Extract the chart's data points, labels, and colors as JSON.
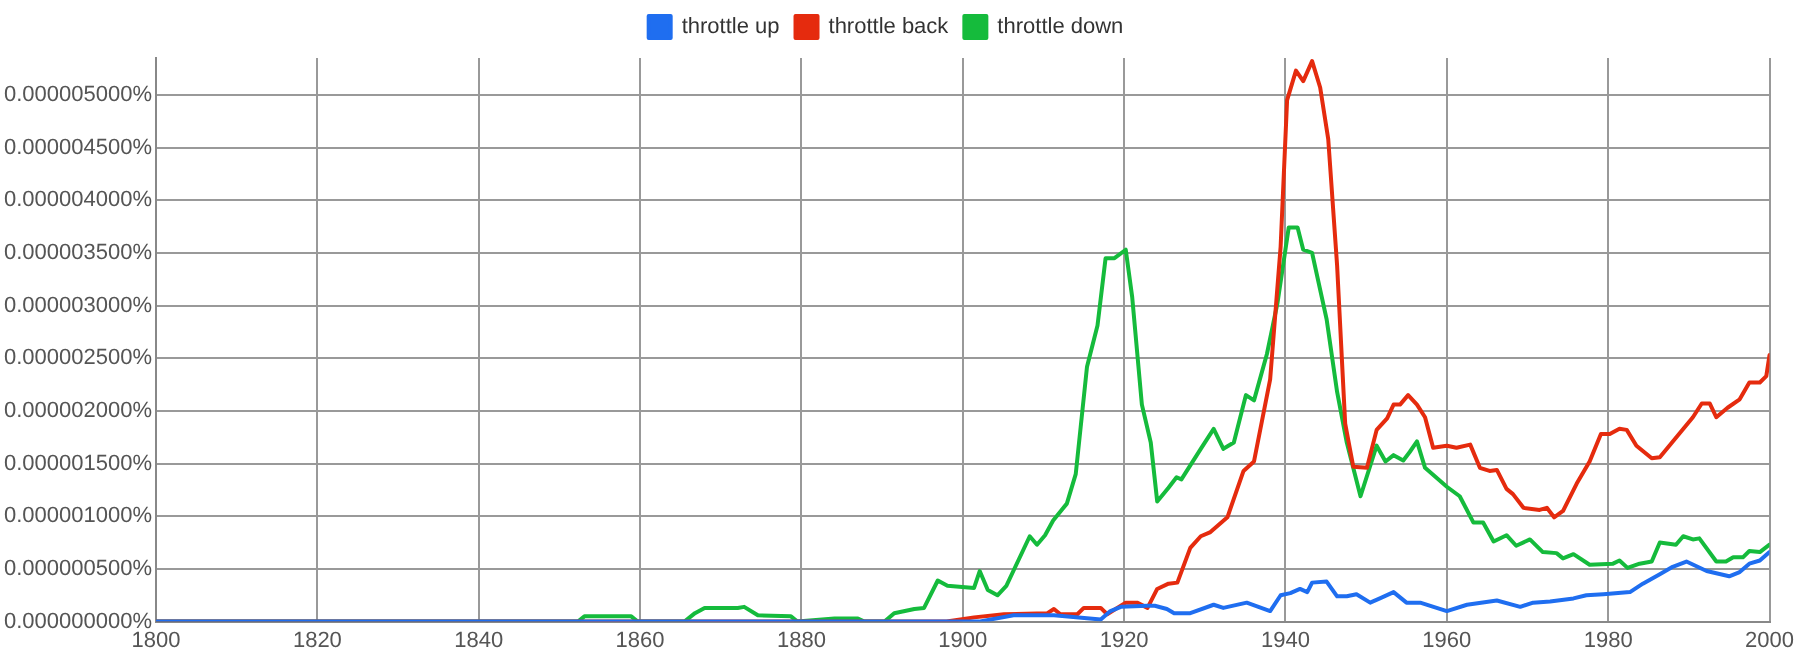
{
  "chart_data": {
    "type": "line",
    "xlim": [
      1800,
      2000
    ],
    "xticks": [
      1800,
      1820,
      1840,
      1860,
      1880,
      1900,
      1920,
      1940,
      1960,
      1980,
      2000
    ],
    "ylim": [
      0,
      5.35e-06
    ],
    "yticks": [
      {
        "value": 0,
        "label": "0.000000000%"
      },
      {
        "value": 5e-07,
        "label": "0.000000500%"
      },
      {
        "value": 1e-06,
        "label": "0.000001000%"
      },
      {
        "value": 1.5e-06,
        "label": "0.000001500%"
      },
      {
        "value": 2e-06,
        "label": "0.000002000%"
      },
      {
        "value": 2.5e-06,
        "label": "0.000002500%"
      },
      {
        "value": 3e-06,
        "label": "0.000003000%"
      },
      {
        "value": 3.5e-06,
        "label": "0.000003500%"
      },
      {
        "value": 4e-06,
        "label": "0.000004000%"
      },
      {
        "value": 4.5e-06,
        "label": "0.000004500%"
      },
      {
        "value": 5e-06,
        "label": "0.000005000%"
      }
    ],
    "grid": true,
    "legend": "top",
    "marker": "none",
    "line_style": "solid",
    "series": [
      {
        "name": "throttle up",
        "color": "#1f6ef0",
        "x": [
          1800,
          1902,
          1906.3,
          1911.3,
          1917.1,
          1918.3,
          1919.6,
          1922.9,
          1923.8,
          1925.3,
          1926.2,
          1928.2,
          1931.1,
          1932.3,
          1935.2,
          1938.1,
          1939.4,
          1940.6,
          1941.8,
          1942.7,
          1943.3,
          1945.1,
          1946.4,
          1947.6,
          1948.8,
          1950.5,
          1951.7,
          1953.4,
          1955,
          1956.7,
          1960,
          1962.5,
          1966.2,
          1969.1,
          1970.7,
          1972.8,
          1975.7,
          1977.3,
          1979.4,
          1982.7,
          1984.3,
          1986.4,
          1988,
          1989.7,
          1992.2,
          1995,
          1996.3,
          1997.5,
          1998.8,
          2000
        ],
        "values": [
          0,
          0,
          6e-08,
          6e-08,
          2e-08,
          1e-07,
          1.4e-07,
          1.5e-07,
          1.5e-07,
          1.2e-07,
          8e-08,
          8e-08,
          1.6e-07,
          1.3e-07,
          1.8e-07,
          1e-07,
          2.5e-07,
          2.7e-07,
          3.1e-07,
          2.8e-07,
          3.7e-07,
          3.8e-07,
          2.4e-07,
          2.4e-07,
          2.6e-07,
          1.8e-07,
          2.2e-07,
          2.8e-07,
          1.8e-07,
          1.8e-07,
          1e-07,
          1.6e-07,
          2e-07,
          1.4e-07,
          1.8e-07,
          1.9e-07,
          2.2e-07,
          2.5e-07,
          2.6e-07,
          2.8e-07,
          3.6e-07,
          4.5e-07,
          5.2e-07,
          5.7e-07,
          4.8e-07,
          4.3e-07,
          4.7e-07,
          5.5e-07,
          5.8e-07,
          6.6e-07
        ]
      },
      {
        "name": "throttle back",
        "color": "#e52b0e",
        "x": [
          1800,
          1898,
          1901.4,
          1905.1,
          1910.5,
          1911.3,
          1912.1,
          1914.2,
          1915,
          1917.1,
          1917.9,
          1920.2,
          1921.6,
          1922.9,
          1924.1,
          1925.5,
          1926.6,
          1928.2,
          1929.5,
          1930.7,
          1932.8,
          1934.8,
          1936.1,
          1938.1,
          1939.4,
          1940.2,
          1941.3,
          1942.2,
          1943.3,
          1944.3,
          1945.3,
          1946.4,
          1947.4,
          1948.4,
          1950.1,
          1951.3,
          1952.6,
          1953.4,
          1954.2,
          1955.2,
          1956.3,
          1957.3,
          1958.3,
          1960,
          1961.2,
          1962.9,
          1964.1,
          1965.3,
          1966.2,
          1967.4,
          1968.2,
          1969.5,
          1971.5,
          1972.4,
          1973.3,
          1974.4,
          1976.1,
          1977.7,
          1979.1,
          1980.2,
          1981.4,
          1982.3,
          1983.5,
          1985.4,
          1986.4,
          1990.5,
          1991.6,
          1992.6,
          1993.4,
          1994.8,
          1996.3,
          1997.5,
          1998.8,
          1999.6,
          2000
        ],
        "values": [
          0,
          0,
          4e-08,
          7e-08,
          8e-08,
          1.2e-07,
          7e-08,
          7e-08,
          1.3e-07,
          1.3e-07,
          7e-08,
          1.8e-07,
          1.8e-07,
          1.3e-07,
          3.1e-07,
          3.6e-07,
          3.7e-07,
          7e-07,
          8.1e-07,
          8.5e-07,
          9.9e-07,
          1.43e-06,
          1.52e-06,
          2.3e-06,
          3.56e-06,
          4.95e-06,
          5.23e-06,
          5.13e-06,
          5.32e-06,
          5.07e-06,
          4.58e-06,
          3.38e-06,
          1.88e-06,
          1.47e-06,
          1.46e-06,
          1.82e-06,
          1.93e-06,
          2.06e-06,
          2.06e-06,
          2.15e-06,
          2.06e-06,
          1.94e-06,
          1.65e-06,
          1.67e-06,
          1.65e-06,
          1.68e-06,
          1.46e-06,
          1.43e-06,
          1.44e-06,
          1.26e-06,
          1.21e-06,
          1.08e-06,
          1.06e-06,
          1.08e-06,
          9.9e-07,
          1.05e-06,
          1.31e-06,
          1.52e-06,
          1.78e-06,
          1.78e-06,
          1.83e-06,
          1.82e-06,
          1.67e-06,
          1.55e-06,
          1.56e-06,
          1.94e-06,
          2.07e-06,
          2.07e-06,
          1.94e-06,
          2.03e-06,
          2.11e-06,
          2.27e-06,
          2.27e-06,
          2.33e-06,
          2.53e-06
        ]
      },
      {
        "name": "throttle down",
        "color": "#15bb3c",
        "x": [
          1800,
          1852.3,
          1853.1,
          1858.9,
          1859.7,
          1865.5,
          1866.8,
          1868,
          1872.1,
          1872.9,
          1874.6,
          1878.7,
          1879.5,
          1884.1,
          1887,
          1887.8,
          1890.3,
          1891.5,
          1894,
          1895.2,
          1896.9,
          1898.1,
          1901.4,
          1902.1,
          1903.1,
          1904.3,
          1905.4,
          1908.3,
          1909.2,
          1910.2,
          1911.2,
          1912.9,
          1914,
          1915.4,
          1916.7,
          1917.7,
          1918.8,
          1920.2,
          1921,
          1922.2,
          1923.3,
          1924.1,
          1925.5,
          1926.5,
          1927.1,
          1929.5,
          1931.1,
          1932.3,
          1933.6,
          1935.1,
          1936.1,
          1937.7,
          1939,
          1940.4,
          1941.5,
          1942.2,
          1943.3,
          1945.1,
          1946.4,
          1947.6,
          1949.3,
          1951.3,
          1952.4,
          1953.4,
          1954.6,
          1955.4,
          1956.3,
          1957.3,
          1960,
          1961.6,
          1963.3,
          1964.5,
          1965.8,
          1967.4,
          1968.6,
          1970.3,
          1971.9,
          1973.6,
          1974.4,
          1975.7,
          1977.7,
          1980.6,
          1981.4,
          1982.4,
          1983.9,
          1985.4,
          1986.4,
          1988.4,
          1989.3,
          1990.5,
          1991.3,
          1993.4,
          1994.6,
          1995.5,
          1996.7,
          1997.5,
          1998.8,
          2000
        ],
        "values": [
          0,
          0,
          5e-08,
          5e-08,
          0,
          0,
          8e-08,
          1.3e-07,
          1.3e-07,
          1.4e-07,
          6e-08,
          5e-08,
          0,
          3e-08,
          3e-08,
          0,
          0,
          8e-08,
          1.2e-07,
          1.3e-07,
          3.9e-07,
          3.4e-07,
          3.2e-07,
          4.8e-07,
          3e-07,
          2.5e-07,
          3.4e-07,
          8.1e-07,
          7.3e-07,
          8.2e-07,
          9.6e-07,
          1.12e-06,
          1.4e-06,
          2.42e-06,
          2.81e-06,
          3.45e-06,
          3.45e-06,
          3.53e-06,
          3.08e-06,
          2.06e-06,
          1.7e-06,
          1.14e-06,
          1.27e-06,
          1.37e-06,
          1.35e-06,
          1.64e-06,
          1.83e-06,
          1.64e-06,
          1.7e-06,
          2.15e-06,
          2.1e-06,
          2.54e-06,
          3.02e-06,
          3.74e-06,
          3.74e-06,
          3.53e-06,
          3.5e-06,
          2.87e-06,
          2.18e-06,
          1.7e-06,
          1.19e-06,
          1.67e-06,
          1.52e-06,
          1.58e-06,
          1.53e-06,
          1.61e-06,
          1.71e-06,
          1.46e-06,
          1.28e-06,
          1.19e-06,
          9.4e-07,
          9.4e-07,
          7.6e-07,
          8.2e-07,
          7.2e-07,
          7.8e-07,
          6.6e-07,
          6.5e-07,
          6e-07,
          6.4e-07,
          5.4e-07,
          5.5e-07,
          5.8e-07,
          5.1e-07,
          5.5e-07,
          5.7e-07,
          7.5e-07,
          7.3e-07,
          8.1e-07,
          7.8e-07,
          7.9e-07,
          5.7e-07,
          5.7e-07,
          6.1e-07,
          6.1e-07,
          6.7e-07,
          6.6e-07,
          7.3e-07
        ]
      }
    ]
  }
}
